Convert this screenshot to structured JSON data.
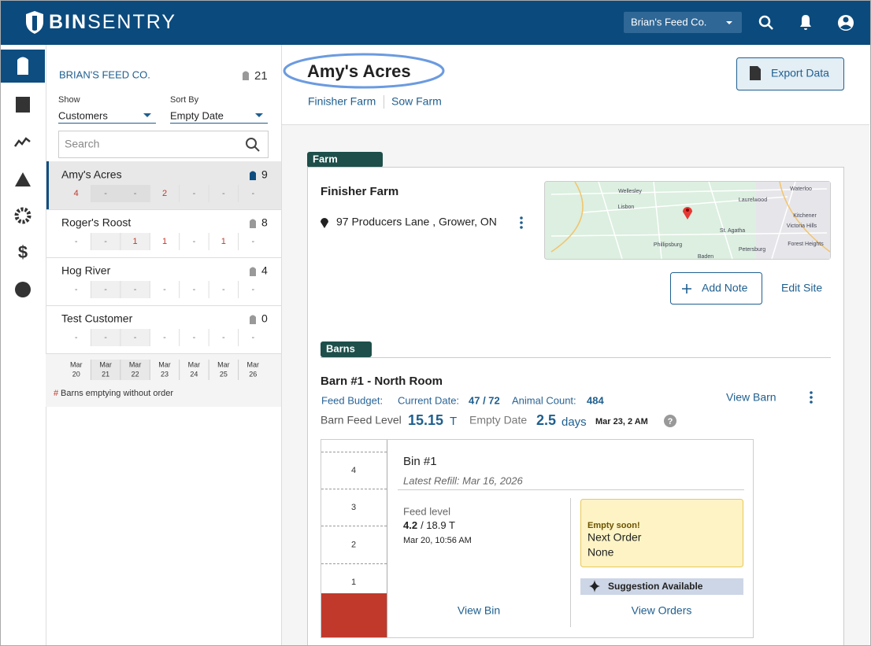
{
  "header": {
    "logo_bold": "BIN",
    "logo_rest": "SENTRY",
    "account": "Brian's Feed Co."
  },
  "sidebar": {
    "company": "BRIAN'S FEED CO.",
    "count": 21,
    "show_label": "Show",
    "show_value": "Customers",
    "sort_label": "Sort By",
    "sort_value": "Empty Date",
    "search_placeholder": "Search",
    "customers": [
      {
        "name": "Amy's Acres",
        "count": 9,
        "days": [
          4,
          "-",
          "-",
          2,
          "-",
          "-",
          "-"
        ]
      },
      {
        "name": "Roger's Roost",
        "count": 8,
        "days": [
          "-",
          "-",
          1,
          1,
          "-",
          1,
          "-"
        ]
      },
      {
        "name": "Hog River",
        "count": 4,
        "days": [
          "-",
          "-",
          "-",
          "-",
          "-",
          "-",
          "-"
        ]
      },
      {
        "name": "Test Customer",
        "count": 0,
        "days": [
          "-",
          "-",
          "-",
          "-",
          "-",
          "-",
          "-"
        ]
      }
    ],
    "dates": [
      {
        "month": "Mar",
        "day": "20"
      },
      {
        "month": "Mar",
        "day": "21"
      },
      {
        "month": "Mar",
        "day": "22"
      },
      {
        "month": "Mar",
        "day": "23"
      },
      {
        "month": "Mar",
        "day": "24"
      },
      {
        "month": "Mar",
        "day": "25"
      },
      {
        "month": "Mar",
        "day": "26"
      }
    ],
    "legend_mark": "#",
    "legend_text": "Barns emptying without order"
  },
  "main": {
    "title": "Amy's Acres",
    "tabs": [
      "Finisher Farm",
      "Sow Farm"
    ],
    "export": "Export Data",
    "farm": {
      "section": "Farm",
      "name": "Finisher Farm",
      "address": "97 Producers Lane , Grower, ON",
      "add_note": "Add Note",
      "edit_site": "Edit Site",
      "map_labels": [
        "Wellesley",
        "Waterloo",
        "Lisbon",
        "Laurelwood",
        "Kitchener",
        "Victoria Hills",
        "St. Agatha",
        "Phillipsburg",
        "Petersburg",
        "Forest Heights",
        "Baden"
      ]
    },
    "barns": {
      "section": "Barns",
      "title": "Barn #1 - North Room",
      "feed_budget": "Feed Budget:",
      "current_date_label": "Current Date:",
      "current_date": "47 / 72",
      "animal_count_label": "Animal Count:",
      "animal_count": "484",
      "view_barn": "View Barn",
      "feed_level_label": "Barn Feed Level",
      "feed_level": "15.15",
      "feed_level_unit": "T",
      "empty_date_label": "Empty Date",
      "empty_days": "2.5",
      "empty_days_unit": "days",
      "empty_when": "Mar 23, 2 AM"
    },
    "bin": {
      "gauge_ticks": [
        4,
        3,
        2,
        1
      ],
      "name": "Bin #1",
      "latest_refill": "Latest Refill: Mar 16, 2026",
      "feed_label": "Feed level",
      "feed_value": "4.2",
      "feed_capacity": "/ 18.9 T",
      "feed_time": "Mar 20, 10:56 AM",
      "alert": "Empty soon!",
      "next_order_label": "Next Order",
      "next_order": "None",
      "suggestion": "Suggestion Available",
      "view_bin": "View Bin",
      "view_orders": "View Orders"
    }
  }
}
